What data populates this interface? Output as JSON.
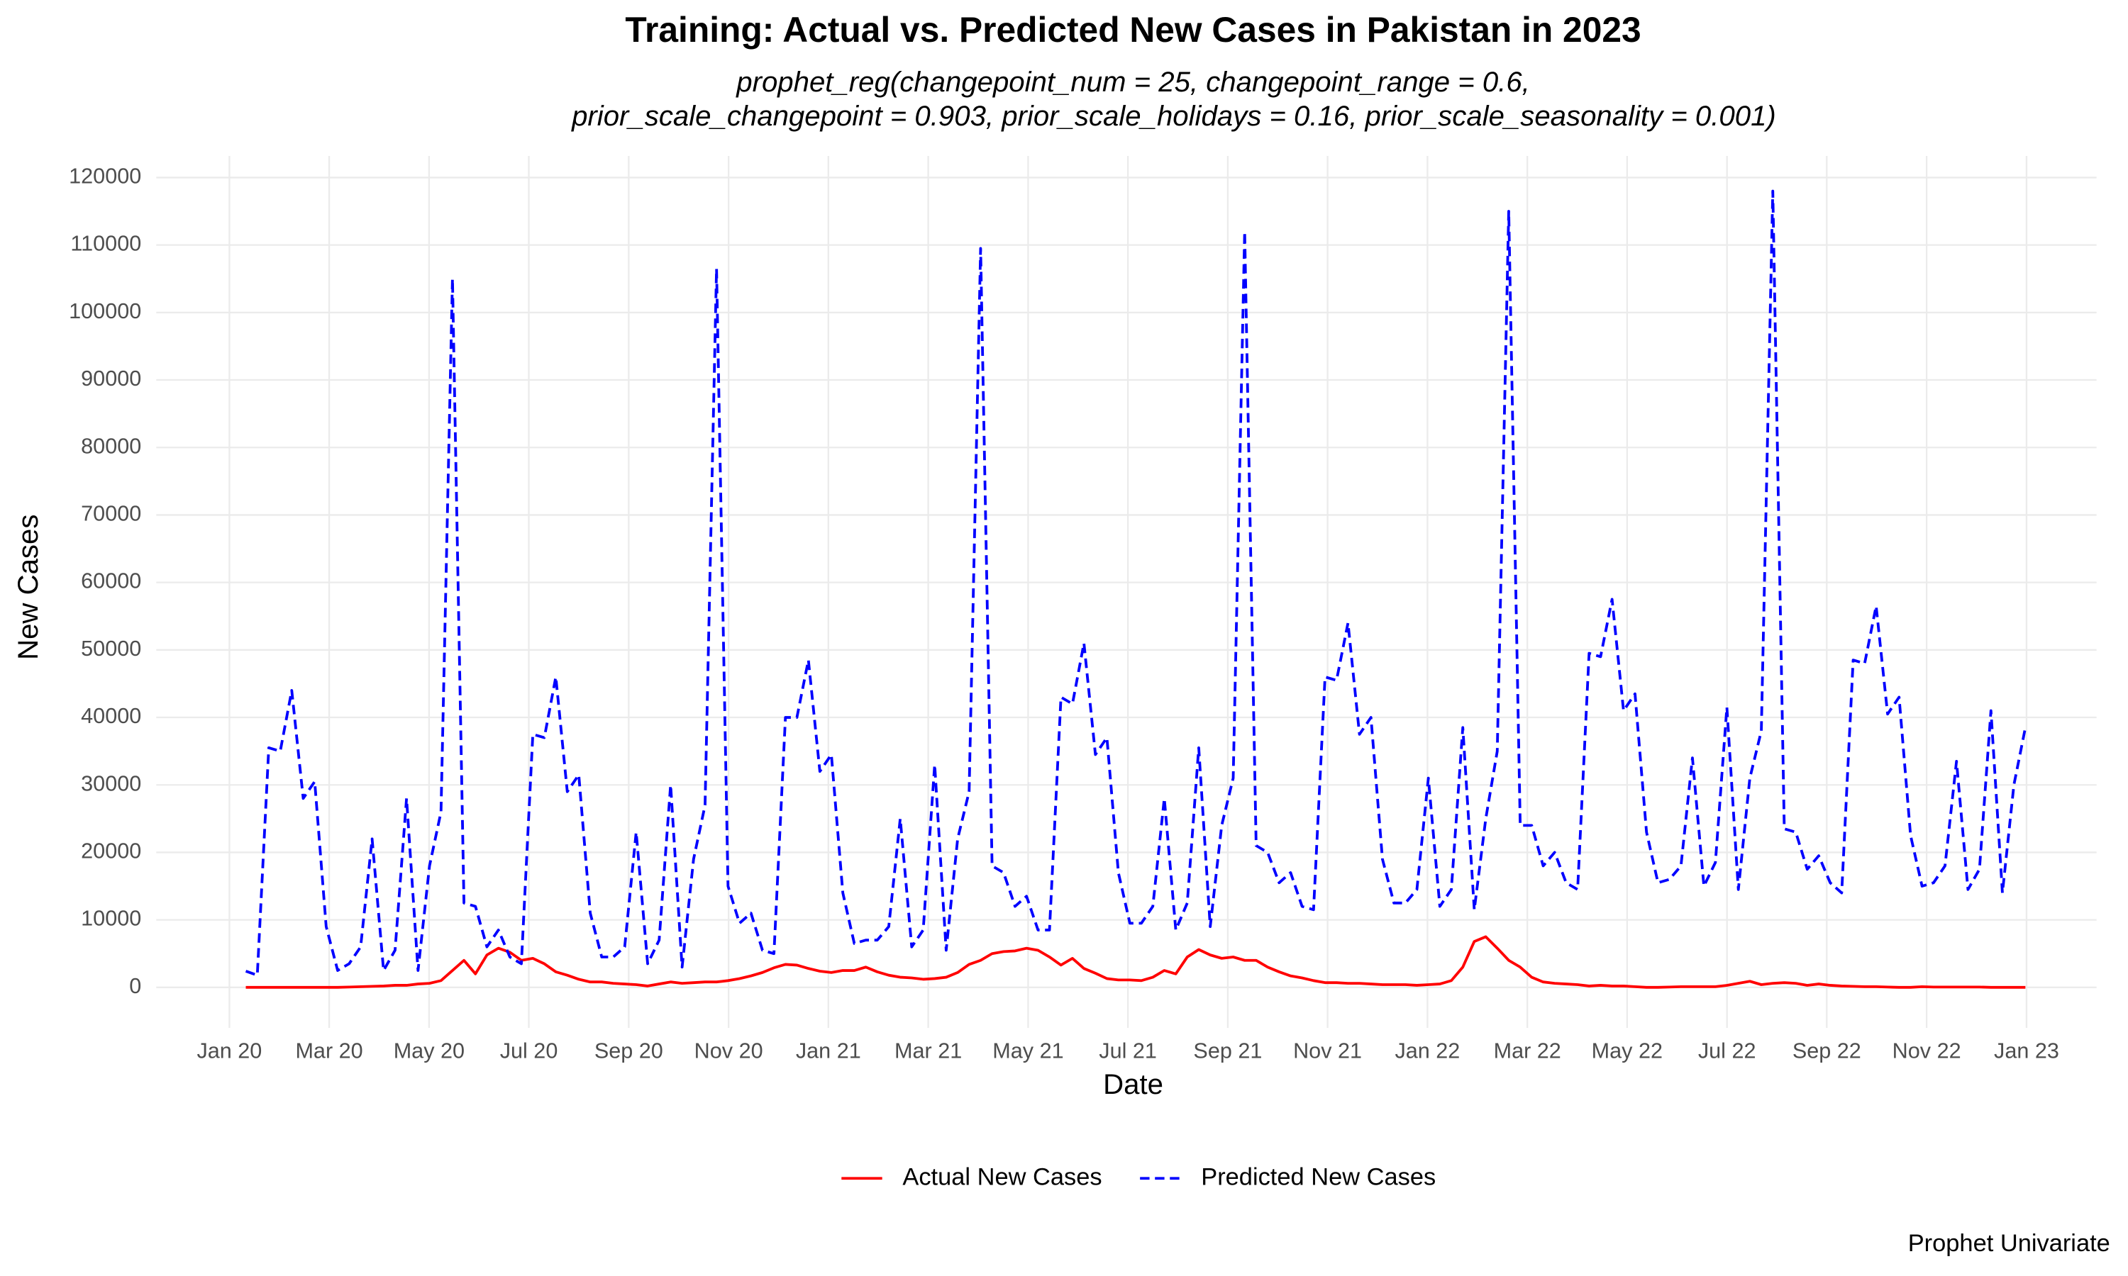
{
  "chart_data": {
    "type": "line",
    "title": "Training: Actual vs. Predicted New Cases in Pakistan in 2023",
    "subtitle": [
      "prophet_reg(changepoint_num = 25, changepoint_range = 0.6,",
      "prior_scale_changepoint = 0.903, prior_scale_holidays = 0.16, prior_scale_seasonality = 0.001)"
    ],
    "x_label": "Date",
    "y_label": "New Cases",
    "caption": "Prophet Univariate",
    "legend": "bottom",
    "grid": true,
    "xlim": [
      -7.8,
      161.2
    ],
    "ylim": [
      -6000,
      123200
    ],
    "xticks": [
      {
        "value": -1.43,
        "label": "Jan 20"
      },
      {
        "value": 7.26,
        "label": "Mar 20"
      },
      {
        "value": 15.96,
        "label": "May 20"
      },
      {
        "value": 24.65,
        "label": "Jul 20"
      },
      {
        "value": 33.35,
        "label": "Sep 20"
      },
      {
        "value": 42.05,
        "label": "Nov 20"
      },
      {
        "value": 50.74,
        "label": "Jan 21"
      },
      {
        "value": 59.44,
        "label": "Mar 21"
      },
      {
        "value": 68.14,
        "label": "May 21"
      },
      {
        "value": 76.83,
        "label": "Jul 21"
      },
      {
        "value": 85.53,
        "label": "Sep 21"
      },
      {
        "value": 94.22,
        "label": "Nov 21"
      },
      {
        "value": 102.92,
        "label": "Jan 22"
      },
      {
        "value": 111.62,
        "label": "Mar 22"
      },
      {
        "value": 120.31,
        "label": "May 22"
      },
      {
        "value": 129.01,
        "label": "Jul 22"
      },
      {
        "value": 137.7,
        "label": "Sep 22"
      },
      {
        "value": 146.4,
        "label": "Nov 22"
      },
      {
        "value": 155.1,
        "label": "Jan 23"
      }
    ],
    "yticks": [
      0,
      10000,
      20000,
      30000,
      40000,
      50000,
      60000,
      70000,
      80000,
      90000,
      100000,
      110000,
      120000
    ],
    "x": [
      0,
      1,
      2,
      3,
      4,
      5,
      6,
      7,
      8,
      9,
      10,
      11,
      12,
      13,
      14,
      15,
      16,
      17,
      18,
      19,
      20,
      21,
      22,
      23,
      24,
      25,
      26,
      27,
      28,
      29,
      30,
      31,
      32,
      33,
      34,
      35,
      36,
      37,
      38,
      39,
      40,
      41,
      42,
      43,
      44,
      45,
      46,
      47,
      48,
      49,
      50,
      51,
      52,
      53,
      54,
      55,
      56,
      57,
      58,
      59,
      60,
      61,
      62,
      63,
      64,
      65,
      66,
      67,
      68,
      69,
      70,
      71,
      72,
      73,
      74,
      75,
      76,
      77,
      78,
      79,
      80,
      81,
      82,
      83,
      84,
      85,
      86,
      87,
      88,
      89,
      90,
      91,
      92,
      93,
      94,
      95,
      96,
      97,
      98,
      99,
      100,
      101,
      102,
      103,
      104,
      105,
      106,
      107,
      108,
      109,
      110,
      111,
      112,
      113,
      114,
      115,
      116,
      117,
      118,
      119,
      120,
      121,
      122,
      123,
      124,
      125,
      126,
      127,
      128,
      129,
      130,
      131,
      132,
      133,
      134,
      135,
      136,
      137,
      138,
      139,
      140,
      141,
      142,
      143,
      144,
      145,
      146,
      147,
      148,
      149,
      150,
      151,
      152,
      153,
      154,
      155
    ],
    "series": [
      {
        "name": "Actual New Cases",
        "color": "#ff0000",
        "dash": false,
        "values": [
          0,
          0,
          0,
          0,
          0,
          0,
          0,
          0,
          0,
          50,
          100,
          150,
          200,
          300,
          300,
          500,
          600,
          1000,
          2500,
          4000,
          2000,
          4800,
          5800,
          5200,
          4000,
          4300,
          3500,
          2300,
          1800,
          1200,
          800,
          800,
          600,
          500,
          400,
          200,
          500,
          800,
          600,
          700,
          800,
          800,
          1000,
          1300,
          1700,
          2200,
          2900,
          3400,
          3300,
          2800,
          2400,
          2200,
          2500,
          2500,
          3000,
          2300,
          1800,
          1500,
          1400,
          1200,
          1300,
          1500,
          2200,
          3400,
          4000,
          5000,
          5300,
          5400,
          5800,
          5500,
          4500,
          3300,
          4300,
          2800,
          2100,
          1300,
          1100,
          1100,
          1000,
          1500,
          2500,
          2000,
          4500,
          5600,
          4800,
          4300,
          4500,
          4000,
          4000,
          3000,
          2300,
          1700,
          1400,
          1000,
          700,
          700,
          600,
          600,
          500,
          400,
          400,
          400,
          300,
          400,
          500,
          1000,
          3000,
          6800,
          7500,
          5800,
          4000,
          3000,
          1500,
          800,
          600,
          500,
          400,
          200,
          300,
          200,
          200,
          100,
          0,
          0,
          50,
          100,
          100,
          100,
          100,
          300,
          600,
          900,
          400,
          600,
          700,
          600,
          300,
          500,
          300,
          200,
          150,
          100,
          100,
          50,
          0,
          0,
          100,
          50,
          50,
          50,
          50,
          50,
          0,
          0,
          0,
          0
        ]
      },
      {
        "name": "Predicted New Cases",
        "color": "#0000ff",
        "dash": true,
        "values": [
          2400,
          1800,
          35500,
          35000,
          44000,
          28000,
          30500,
          9000,
          2500,
          3500,
          6000,
          22000,
          2500,
          5500,
          28000,
          2500,
          18000,
          26000,
          105000,
          12500,
          12000,
          6000,
          8500,
          4500,
          3500,
          37500,
          37000,
          46000,
          29000,
          31500,
          11000,
          4500,
          4500,
          6000,
          23000,
          3500,
          7000,
          30000,
          3000,
          19000,
          27000,
          106500,
          15000,
          9500,
          11000,
          5500,
          5000,
          40000,
          40000,
          48500,
          32000,
          34500,
          14000,
          6500,
          7000,
          7000,
          9000,
          25000,
          6000,
          8500,
          33000,
          5500,
          22000,
          29000,
          109500,
          18000,
          17000,
          12000,
          13500,
          8500,
          8500,
          43000,
          42000,
          51000,
          34500,
          37000,
          17000,
          9500,
          9500,
          12000,
          28000,
          8500,
          12500,
          35500,
          9000,
          24000,
          31000,
          112000,
          21000,
          20000,
          15500,
          17000,
          12000,
          11500,
          46000,
          45500,
          54000,
          37500,
          40000,
          19000,
          12500,
          12500,
          14500,
          31000,
          12000,
          14500,
          38500,
          11500,
          25000,
          35000,
          115000,
          24000,
          24000,
          18000,
          20000,
          15500,
          14500,
          49500,
          49000,
          57500,
          41000,
          43500,
          23000,
          15500,
          16000,
          18000,
          34000,
          15000,
          18500,
          41500,
          14500,
          31000,
          38000,
          118000,
          23500,
          23000,
          17500,
          19500,
          15500,
          14000,
          48500,
          48000,
          56500,
          40500,
          43000,
          22500,
          15000,
          15500,
          18000,
          33500,
          14500,
          17500,
          41000,
          14000,
          30000,
          38500
        ]
      }
    ]
  }
}
